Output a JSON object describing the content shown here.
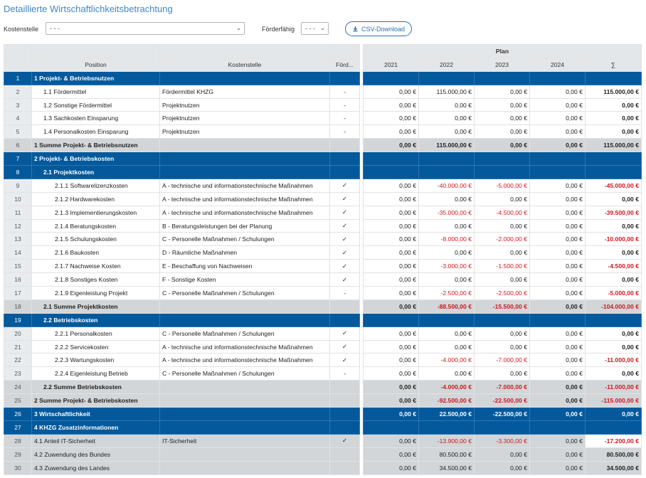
{
  "title": "Detaillierte Wirtschaftlichkeitsbetrachtung",
  "filters": {
    "kostenstelle_label": "Kostenstelle",
    "kostenstelle_value": "- - -",
    "foerderfaehig_label": "Förderfähig",
    "foerderfaehig_value": "- - -",
    "csv_label": "CSV-Download"
  },
  "table": {
    "headers": {
      "position": "Position",
      "kostenstelle": "Kostenstelle",
      "foerd": "Förd...",
      "plan": "Plan",
      "years": [
        "2021",
        "2022",
        "2023",
        "2024",
        "∑"
      ]
    },
    "rows": [
      {
        "n": "1",
        "type": "sec",
        "indent": 0,
        "pos": "1 Projekt- & Betriebsnutzen",
        "ks": "",
        "f": "",
        "v": [
          "",
          "",
          "",
          "",
          ""
        ]
      },
      {
        "n": "2",
        "type": "norm",
        "indent": 1,
        "pos": "1.1 Fördermittel",
        "ks": "Fördermittel KHZG",
        "f": "-",
        "v": [
          "0,00 €",
          "115.000,00 €",
          "0,00 €",
          "0,00 €",
          "115.000,00 €"
        ]
      },
      {
        "n": "3",
        "type": "norm",
        "indent": 1,
        "pos": "1.2 Sonstige Fördermittel",
        "ks": "Projektnutzen",
        "f": "-",
        "v": [
          "0,00 €",
          "0,00 €",
          "0,00 €",
          "0,00 €",
          "0,00 €"
        ]
      },
      {
        "n": "4",
        "type": "norm",
        "indent": 1,
        "pos": "1.3 Sachkosten Einsparung",
        "ks": "Projektnutzen",
        "f": "-",
        "v": [
          "0,00 €",
          "0,00 €",
          "0,00 €",
          "0,00 €",
          "0,00 €"
        ]
      },
      {
        "n": "5",
        "type": "norm",
        "indent": 1,
        "pos": "1.4 Personalkosten Einsparung",
        "ks": "Projektnutzen",
        "f": "-",
        "v": [
          "0,00 €",
          "0,00 €",
          "0,00 €",
          "0,00 €",
          "0,00 €"
        ]
      },
      {
        "n": "6",
        "type": "sum",
        "indent": 0,
        "pos": "1 Summe Projekt- & Betriebsnutzen",
        "ks": "",
        "f": "",
        "v": [
          "0,00 €",
          "115.000,00 €",
          "0,00 €",
          "0,00 €",
          "115.000,00 €"
        ]
      },
      {
        "n": "7",
        "type": "sec",
        "indent": 0,
        "pos": "2 Projekt- & Betriebskosten",
        "ks": "",
        "f": "",
        "v": [
          "",
          "",
          "",
          "",
          ""
        ]
      },
      {
        "n": "8",
        "type": "sec",
        "indent": 1,
        "pos": "2.1 Projektkosten",
        "ks": "",
        "f": "",
        "v": [
          "",
          "",
          "",
          "",
          ""
        ]
      },
      {
        "n": "9",
        "type": "norm",
        "indent": 2,
        "pos": "2.1.1 Softwarelizenzkosten",
        "ks": "A - technische und informationstechnische Maßnahmen",
        "f": "✓",
        "v": [
          "0,00 €",
          "-40.000,00 €",
          "-5.000,00 €",
          "0,00 €",
          "-45.000,00 €"
        ]
      },
      {
        "n": "10",
        "type": "norm",
        "indent": 2,
        "pos": "2.1.2 Hardwarekosten",
        "ks": "A - technische und informationstechnische Maßnahmen",
        "f": "✓",
        "v": [
          "0,00 €",
          "0,00 €",
          "0,00 €",
          "0,00 €",
          "0,00 €"
        ]
      },
      {
        "n": "11",
        "type": "norm",
        "indent": 2,
        "pos": "2.1.3 Implementierungskosten",
        "ks": "A - technische und informationstechnische Maßnahmen",
        "f": "✓",
        "v": [
          "0,00 €",
          "-35.000,00 €",
          "-4.500,00 €",
          "0,00 €",
          "-39.500,00 €"
        ]
      },
      {
        "n": "12",
        "type": "norm",
        "indent": 2,
        "pos": "2.1.4 Beratungskosten",
        "ks": "B - Beratungsleistungen bei der Planung",
        "f": "✓",
        "v": [
          "0,00 €",
          "0,00 €",
          "0,00 €",
          "0,00 €",
          "0,00 €"
        ]
      },
      {
        "n": "13",
        "type": "norm",
        "indent": 2,
        "pos": "2.1.5 Schulungskosten",
        "ks": "C - Personelle Maßnahmen / Schulungen",
        "f": "✓",
        "v": [
          "0,00 €",
          "-8.000,00 €",
          "-2.000,00 €",
          "0,00 €",
          "-10.000,00 €"
        ]
      },
      {
        "n": "14",
        "type": "norm",
        "indent": 2,
        "pos": "2.1.6 Baukosten",
        "ks": "D - Räumliche Maßnahmen",
        "f": "✓",
        "v": [
          "0,00 €",
          "0,00 €",
          "0,00 €",
          "0,00 €",
          "0,00 €"
        ]
      },
      {
        "n": "15",
        "type": "norm",
        "indent": 2,
        "pos": "2.1.7 Nachweise Kosten",
        "ks": "E - Beschaffung von Nachweisen",
        "f": "✓",
        "v": [
          "0,00 €",
          "-3.000,00 €",
          "-1.500,00 €",
          "0,00 €",
          "-4.500,00 €"
        ]
      },
      {
        "n": "16",
        "type": "norm",
        "indent": 2,
        "pos": "2.1.8 Sonstiges Kosten",
        "ks": "F - Sonstige Kosten",
        "f": "✓",
        "v": [
          "0,00 €",
          "0,00 €",
          "0,00 €",
          "0,00 €",
          "0,00 €"
        ]
      },
      {
        "n": "17",
        "type": "norm",
        "indent": 2,
        "pos": "2.1.9 Eigenleistung Projekt",
        "ks": "C - Personelle Maßnahmen / Schulungen",
        "f": "-",
        "v": [
          "0,00 €",
          "-2.500,00 €",
          "-2.500,00 €",
          "0,00 €",
          "-5.000,00 €"
        ]
      },
      {
        "n": "18",
        "type": "sum",
        "indent": 1,
        "pos": "2.1 Summe Projektkosten",
        "ks": "",
        "f": "",
        "v": [
          "0,00 €",
          "-88.500,00 €",
          "-15.500,00 €",
          "0,00 €",
          "-104.000,00 €"
        ]
      },
      {
        "n": "19",
        "type": "sec",
        "indent": 1,
        "pos": "2.2 Betriebskosten",
        "ks": "",
        "f": "",
        "v": [
          "",
          "",
          "",
          "",
          ""
        ]
      },
      {
        "n": "20",
        "type": "norm",
        "indent": 2,
        "pos": "2.2.1 Personalkosten",
        "ks": "C - Personelle Maßnahmen / Schulungen",
        "f": "✓",
        "v": [
          "0,00 €",
          "0,00 €",
          "0,00 €",
          "0,00 €",
          "0,00 €"
        ]
      },
      {
        "n": "21",
        "type": "norm",
        "indent": 2,
        "pos": "2.2.2 Servicekosten",
        "ks": "A - technische und informationstechnische Maßnahmen",
        "f": "✓",
        "v": [
          "0,00 €",
          "0,00 €",
          "0,00 €",
          "0,00 €",
          "0,00 €"
        ]
      },
      {
        "n": "22",
        "type": "norm",
        "indent": 2,
        "pos": "2.2.3 Wartungskosten",
        "ks": "A - technische und informationstechnische Maßnahmen",
        "f": "✓",
        "v": [
          "0,00 €",
          "-4.000,00 €",
          "-7.000,00 €",
          "0,00 €",
          "-11.000,00 €"
        ]
      },
      {
        "n": "23",
        "type": "norm",
        "indent": 2,
        "pos": "2.2.4 Eigenleistung Betrieb",
        "ks": "C - Personelle Maßnahmen / Schulungen",
        "f": "-",
        "v": [
          "0,00 €",
          "0,00 €",
          "0,00 €",
          "0,00 €",
          "0,00 €"
        ]
      },
      {
        "n": "24",
        "type": "sum",
        "indent": 1,
        "pos": "2.2 Summe Betriebskosten",
        "ks": "",
        "f": "",
        "v": [
          "0,00 €",
          "-4.000,00 €",
          "-7.000,00 €",
          "0,00 €",
          "-11.000,00 €"
        ]
      },
      {
        "n": "25",
        "type": "sum",
        "indent": 0,
        "pos": "2 Summe Projekt- & Betriebskosten",
        "ks": "",
        "f": "",
        "v": [
          "0,00 €",
          "-92.500,00 €",
          "-22.500,00 €",
          "0,00 €",
          "-115.000,00 €"
        ]
      },
      {
        "n": "26",
        "type": "sec",
        "indent": 0,
        "pos": "3 Wirtschaftlichkeit",
        "ks": "",
        "f": "",
        "v": [
          "0,00 €",
          "22.500,00 €",
          "-22.500,00 €",
          "0,00 €",
          "0,00 €"
        ]
      },
      {
        "n": "27",
        "type": "sec",
        "indent": 0,
        "pos": "4 KHZG Zusatzinformationen",
        "ks": "",
        "f": "",
        "v": [
          "",
          "",
          "",
          "",
          ""
        ]
      },
      {
        "n": "28",
        "type": "ro",
        "indent": 0,
        "pos": "4.1 Anteil IT-Sicherheit",
        "ks": "IT-Sicherheit",
        "f": "✓",
        "v": [
          "0,00 €",
          "-13.900,00 €",
          "-3.300,00 €",
          "0,00 €",
          "-17.200,00 €"
        ]
      },
      {
        "n": "29",
        "type": "ro",
        "indent": 0,
        "pos": "4.2 Zuwendung des Bundes",
        "ks": "",
        "f": "",
        "v": [
          "0,00 €",
          "80.500,00 €",
          "0,00 €",
          "0,00 €",
          "80.500,00 €"
        ]
      },
      {
        "n": "30",
        "type": "ro",
        "indent": 0,
        "pos": "4.3 Zuwendung des Landes",
        "ks": "",
        "f": "",
        "v": [
          "0,00 €",
          "34.500,00 €",
          "0,00 €",
          "0,00 €",
          "34.500,00 €"
        ]
      }
    ]
  },
  "colors": {
    "section": "#03599c",
    "sum": "#d2d6d9",
    "header": "#e4e7e9",
    "negative": "#d0181e",
    "accent": "#3f86c9"
  }
}
